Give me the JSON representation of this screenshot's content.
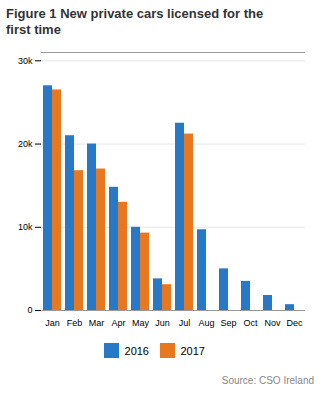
{
  "chart_data": {
    "type": "bar",
    "title": "Figure 1 New private cars licensed for the\nfirst time",
    "categories": [
      "Jan",
      "Feb",
      "Mar",
      "Apr",
      "May",
      "Jun",
      "Jul",
      "Aug",
      "Sep",
      "Oct",
      "Nov",
      "Dec"
    ],
    "series": [
      {
        "name": "2016",
        "color": "#2878c8",
        "values": [
          27000,
          21000,
          20000,
          14800,
          10000,
          3800,
          22500,
          9700,
          5000,
          3500,
          1800,
          700
        ]
      },
      {
        "name": "2017",
        "color": "#e87820",
        "values": [
          26500,
          16800,
          17000,
          13000,
          9300,
          3100,
          21200,
          0,
          0,
          0,
          0,
          0
        ]
      }
    ],
    "ylim": [
      0,
      31000
    ],
    "yticks": [
      0,
      {
        "value": 10000,
        "label": "10k"
      },
      {
        "value": 20000,
        "label": "20k"
      },
      {
        "value": 30000,
        "label": "30k"
      }
    ],
    "grid": true,
    "legend": "bottom",
    "annotations": [
      "Source: CSO Ireland"
    ]
  }
}
